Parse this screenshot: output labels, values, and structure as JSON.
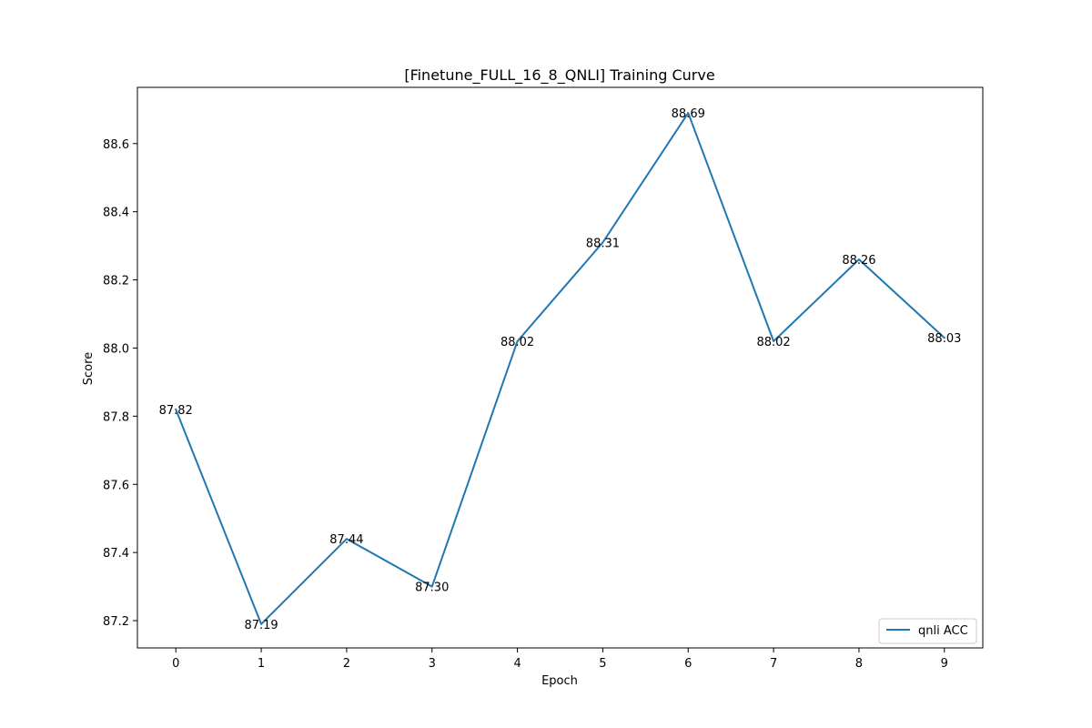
{
  "chart_data": {
    "type": "line",
    "title": "[Finetune_FULL_16_8_QNLI] Training Curve",
    "xlabel": "Epoch",
    "ylabel": "Score",
    "x": [
      0,
      1,
      2,
      3,
      4,
      5,
      6,
      7,
      8,
      9
    ],
    "xticks": [
      "0",
      "1",
      "2",
      "3",
      "4",
      "5",
      "6",
      "7",
      "8",
      "9"
    ],
    "yticks": [
      "87.2",
      "87.4",
      "87.6",
      "87.8",
      "88.0",
      "88.2",
      "88.4",
      "88.6"
    ],
    "xlim": [
      -0.45,
      9.45
    ],
    "ylim": [
      87.12,
      88.765
    ],
    "grid": false,
    "legend_position": "lower right",
    "series": [
      {
        "name": "qnli ACC",
        "color": "#1f77b4",
        "values": [
          87.82,
          87.19,
          87.44,
          87.3,
          88.02,
          88.31,
          88.69,
          88.02,
          88.26,
          88.03
        ],
        "labels": [
          "87.82",
          "87.19",
          "87.44",
          "87.30",
          "88.02",
          "88.31",
          "88.69",
          "88.02",
          "88.26",
          "88.03"
        ]
      }
    ]
  }
}
